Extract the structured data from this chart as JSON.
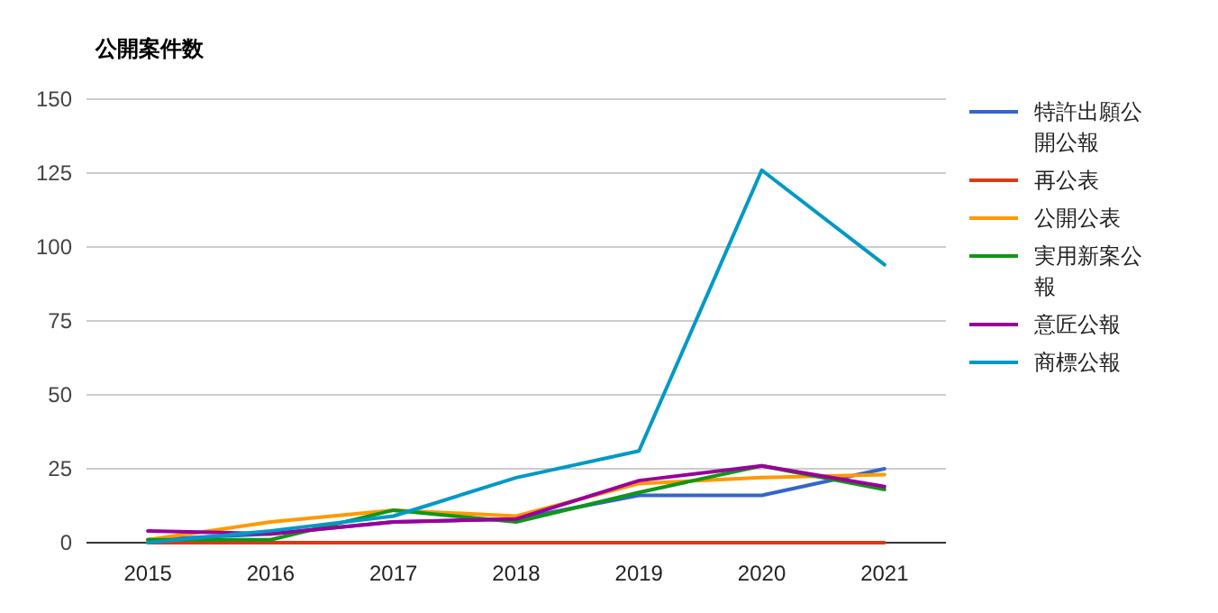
{
  "chart_data": {
    "type": "line",
    "title": "公開案件数",
    "categories": [
      "2015",
      "2016",
      "2017",
      "2018",
      "2019",
      "2020",
      "2021"
    ],
    "series": [
      {
        "name": "特許出願公開公報",
        "color": "#3366cc",
        "values": [
          1,
          3,
          7,
          8,
          16,
          16,
          25
        ]
      },
      {
        "name": "再公表",
        "color": "#dc3912",
        "values": [
          0,
          0,
          0,
          0,
          0,
          0,
          0
        ]
      },
      {
        "name": "公開公表",
        "color": "#ff9900",
        "values": [
          1,
          7,
          11,
          9,
          20,
          22,
          23
        ]
      },
      {
        "name": "実用新案公報",
        "color": "#109618",
        "values": [
          1,
          1,
          11,
          7,
          17,
          26,
          18
        ]
      },
      {
        "name": "意匠公報",
        "color": "#990099",
        "values": [
          4,
          3,
          7,
          8,
          21,
          26,
          19
        ]
      },
      {
        "name": "商標公報",
        "color": "#0099c6",
        "values": [
          0,
          4,
          9,
          22,
          31,
          126,
          94
        ]
      }
    ],
    "ylim": [
      0,
      150
    ],
    "yticks": [
      0,
      25,
      50,
      75,
      100,
      125,
      150
    ],
    "grid": "y",
    "legend": "right"
  }
}
